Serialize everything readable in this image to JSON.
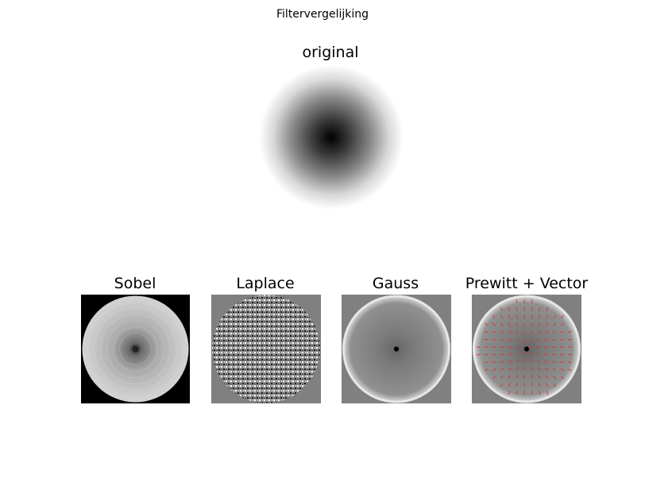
{
  "figure": {
    "suptitle": "Filtervergelijking"
  },
  "panels": {
    "original": {
      "title": "original"
    },
    "sobel": {
      "title": "Sobel"
    },
    "laplace": {
      "title": "Laplace"
    },
    "gauss": {
      "title": "Gauss"
    },
    "prewitt": {
      "title": "Prewitt + Vector"
    }
  },
  "colors": {
    "background": "#ffffff",
    "sobel_background": "#000000",
    "filter_gray": "#808080",
    "vector_color": "#e03030"
  }
}
